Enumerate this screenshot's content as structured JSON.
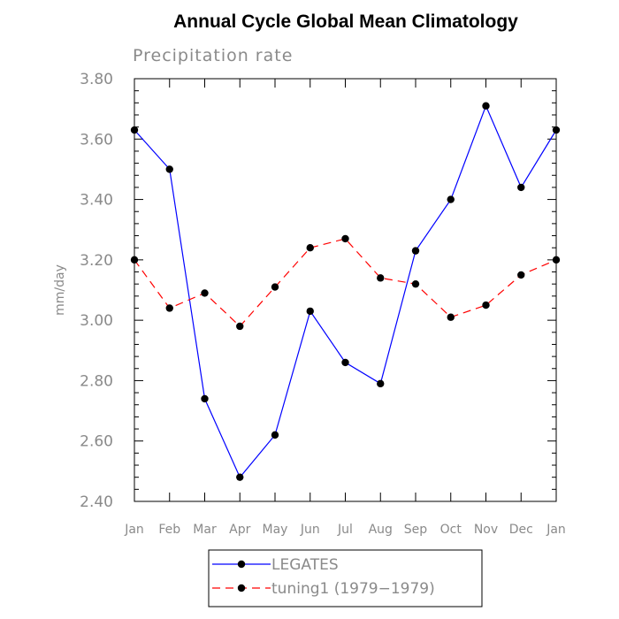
{
  "chart_data": {
    "type": "line",
    "title": "Annual Cycle Global Mean Climatology",
    "subtitle": "Precipitation rate",
    "xlabel": "",
    "ylabel": "mm/day",
    "ylim": [
      2.4,
      3.8
    ],
    "yticks": [
      "2.40",
      "2.60",
      "2.80",
      "3.00",
      "3.20",
      "3.40",
      "3.60",
      "3.80"
    ],
    "categories": [
      "Jan",
      "Feb",
      "Mar",
      "Apr",
      "May",
      "Jun",
      "Jul",
      "Aug",
      "Sep",
      "Oct",
      "Nov",
      "Dec",
      "Jan"
    ],
    "series": [
      {
        "name": "LEGATES",
        "color": "#0000ff",
        "dash": "solid",
        "values": [
          3.63,
          3.5,
          2.74,
          2.48,
          2.62,
          3.03,
          2.86,
          2.79,
          3.23,
          3.4,
          3.71,
          3.44,
          3.63
        ]
      },
      {
        "name": "tuning1 (1979−1979)",
        "color": "#ff0000",
        "dash": "dashed",
        "values": [
          3.2,
          3.04,
          3.09,
          2.98,
          3.11,
          3.24,
          3.27,
          3.14,
          3.12,
          3.01,
          3.05,
          3.15,
          3.2
        ]
      }
    ],
    "grid": false,
    "legend": "bottom"
  }
}
